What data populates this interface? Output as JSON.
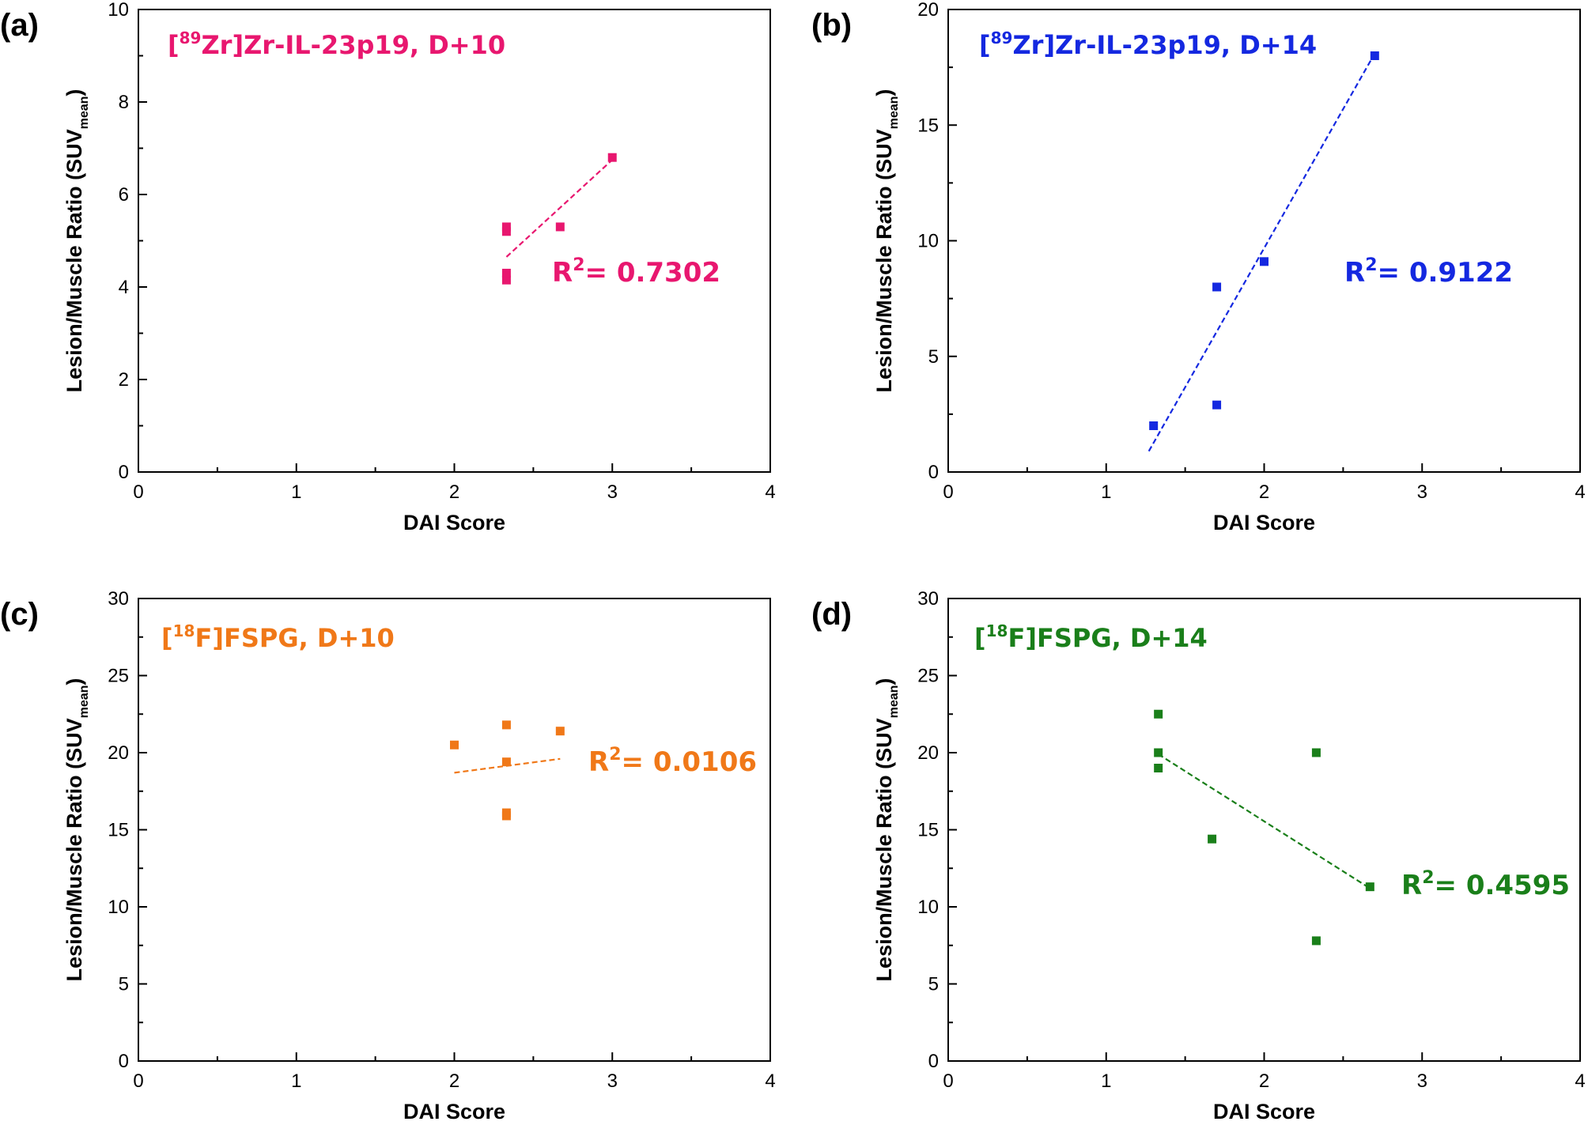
{
  "chart_data": [
    {
      "type": "scatter",
      "panel_label": "(a)",
      "title": {
        "prefix": "[",
        "sup": "89",
        "main": "Zr]Zr-IL-23p19, D+10"
      },
      "xlabel": "DAI Score",
      "ylabel": {
        "main": "Lesion/Muscle Ratio (SUV",
        "sub": "mean",
        "close": ")"
      },
      "xlim": [
        0,
        4
      ],
      "ylim": [
        0,
        10
      ],
      "xticks": [
        0,
        1,
        2,
        3,
        4
      ],
      "yticks": [
        0,
        2,
        4,
        6,
        8,
        10
      ],
      "color": "#e8176f",
      "points": [
        [
          2.33,
          4.15
        ],
        [
          2.33,
          4.3
        ],
        [
          2.33,
          5.2
        ],
        [
          2.33,
          5.3
        ],
        [
          2.67,
          5.3
        ],
        [
          3.0,
          6.8
        ]
      ],
      "fit": {
        "x": [
          2.33,
          3.0
        ],
        "y": [
          4.65,
          6.75
        ]
      },
      "r2": {
        "label": "R",
        "sup": "2",
        "value": "= 0.7302"
      }
    },
    {
      "type": "scatter",
      "panel_label": "(b)",
      "title": {
        "prefix": "[",
        "sup": "89",
        "main": "Zr]Zr-IL-23p19, D+14"
      },
      "xlabel": "DAI Score",
      "ylabel": {
        "main": "Lesion/Muscle Ratio (SUV",
        "sub": "mean",
        "close": ")"
      },
      "xlim": [
        0,
        4
      ],
      "ylim": [
        0,
        20
      ],
      "xticks": [
        0,
        1,
        2,
        3,
        4
      ],
      "yticks": [
        0,
        5,
        10,
        15,
        20
      ],
      "color": "#1428e0",
      "points": [
        [
          1.3,
          2.0
        ],
        [
          1.7,
          2.9
        ],
        [
          1.7,
          8.0
        ],
        [
          2.0,
          9.1
        ],
        [
          2.7,
          18.0
        ]
      ],
      "fit": {
        "x": [
          1.27,
          2.7
        ],
        "y": [
          0.9,
          18.1
        ]
      },
      "r2": {
        "label": "R",
        "sup": "2",
        "value": "= 0.9122"
      }
    },
    {
      "type": "scatter",
      "panel_label": "(c)",
      "title": {
        "prefix": "[",
        "sup": "18",
        "main": "F]FSPG, D+10"
      },
      "xlabel": "DAI Score",
      "ylabel": {
        "main": "Lesion/Muscle Ratio (SUV",
        "sub": "mean",
        "close": ")"
      },
      "xlim": [
        0,
        4
      ],
      "ylim": [
        0,
        30
      ],
      "xticks": [
        0,
        1,
        2,
        3,
        4
      ],
      "yticks": [
        0,
        5,
        10,
        15,
        20,
        25,
        30
      ],
      "color": "#f07818",
      "points": [
        [
          2.0,
          20.5
        ],
        [
          2.33,
          21.8
        ],
        [
          2.33,
          19.4
        ],
        [
          2.33,
          16.1
        ],
        [
          2.33,
          15.9
        ],
        [
          2.67,
          21.4
        ]
      ],
      "fit": {
        "x": [
          2.0,
          2.67
        ],
        "y": [
          18.7,
          19.6
        ]
      },
      "r2": {
        "label": "R",
        "sup": "2",
        "value": "= 0.0106"
      }
    },
    {
      "type": "scatter",
      "panel_label": "(d)",
      "title": {
        "prefix": "[",
        "sup": "18",
        "main": "F]FSPG, D+14"
      },
      "xlabel": "DAI Score",
      "ylabel": {
        "main": "Lesion/Muscle Ratio (SUV",
        "sub": "mean",
        "close": ")"
      },
      "xlim": [
        0,
        4
      ],
      "ylim": [
        0,
        30
      ],
      "xticks": [
        0,
        1,
        2,
        3,
        4
      ],
      "yticks": [
        0,
        5,
        10,
        15,
        20,
        25,
        30
      ],
      "color": "#1a7f1a",
      "points": [
        [
          1.33,
          22.5
        ],
        [
          1.33,
          20.0
        ],
        [
          1.33,
          19.0
        ],
        [
          1.67,
          14.4
        ],
        [
          2.33,
          20.0
        ],
        [
          2.33,
          7.8
        ],
        [
          2.67,
          11.3
        ]
      ],
      "fit": {
        "x": [
          1.33,
          2.67
        ],
        "y": [
          19.9,
          11.2
        ]
      },
      "r2": {
        "label": "R",
        "sup": "2",
        "value": "= 0.4595"
      }
    }
  ]
}
